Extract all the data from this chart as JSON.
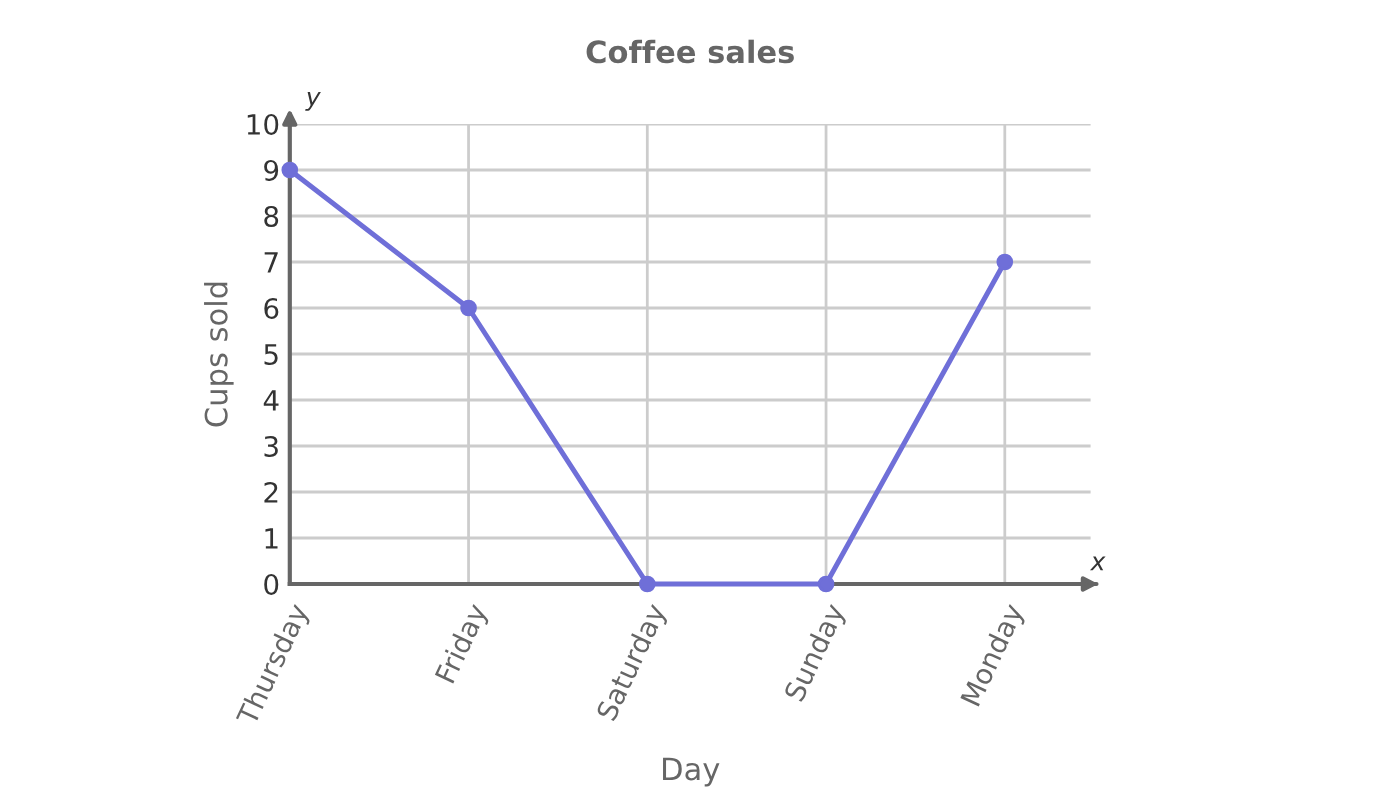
{
  "chart_data": {
    "type": "line",
    "title": "Coffee sales",
    "xlabel": "Day",
    "ylabel": "Cups sold",
    "annotations": [
      "y",
      "x"
    ],
    "categories": [
      "Thursday",
      "Friday",
      "Saturday",
      "Sunday",
      "Monday"
    ],
    "series": [
      {
        "color": "#6f6fd8",
        "values": [
          9,
          6,
          0,
          0,
          7
        ]
      }
    ],
    "ylim": [
      0,
      10
    ],
    "yticks": [
      0,
      1,
      2,
      3,
      4,
      5,
      6,
      7,
      8,
      9,
      10
    ],
    "grid": true,
    "marker": "circle",
    "line_style": "solid",
    "legend": false
  }
}
